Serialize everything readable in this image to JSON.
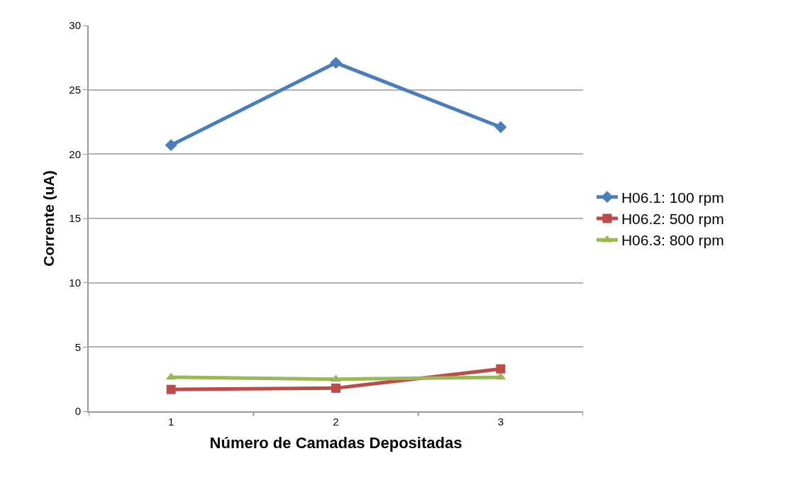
{
  "chart_data": {
    "type": "line",
    "xlabel": "Número de Camadas Depositadas",
    "ylabel": "Corrente (uA)",
    "categories": [
      "1",
      "2",
      "3"
    ],
    "series": [
      {
        "name": "H06.1: 100 rpm",
        "color": "#4a7ebb",
        "marker": "diamond",
        "values": [
          20.7,
          27.1,
          22.1
        ]
      },
      {
        "name": "H06.2: 500 rpm",
        "color": "#be4b48",
        "marker": "square",
        "values": [
          1.7,
          1.8,
          3.3
        ]
      },
      {
        "name": "H06.3: 800 rpm",
        "color": "#98b954",
        "marker": "triangle",
        "values": [
          2.65,
          2.5,
          2.65
        ]
      }
    ],
    "ylim": [
      0,
      30
    ],
    "yticks": [
      0,
      5,
      10,
      15,
      20,
      25,
      30
    ],
    "grid": "y",
    "legend": "right",
    "line_style": "solid"
  }
}
